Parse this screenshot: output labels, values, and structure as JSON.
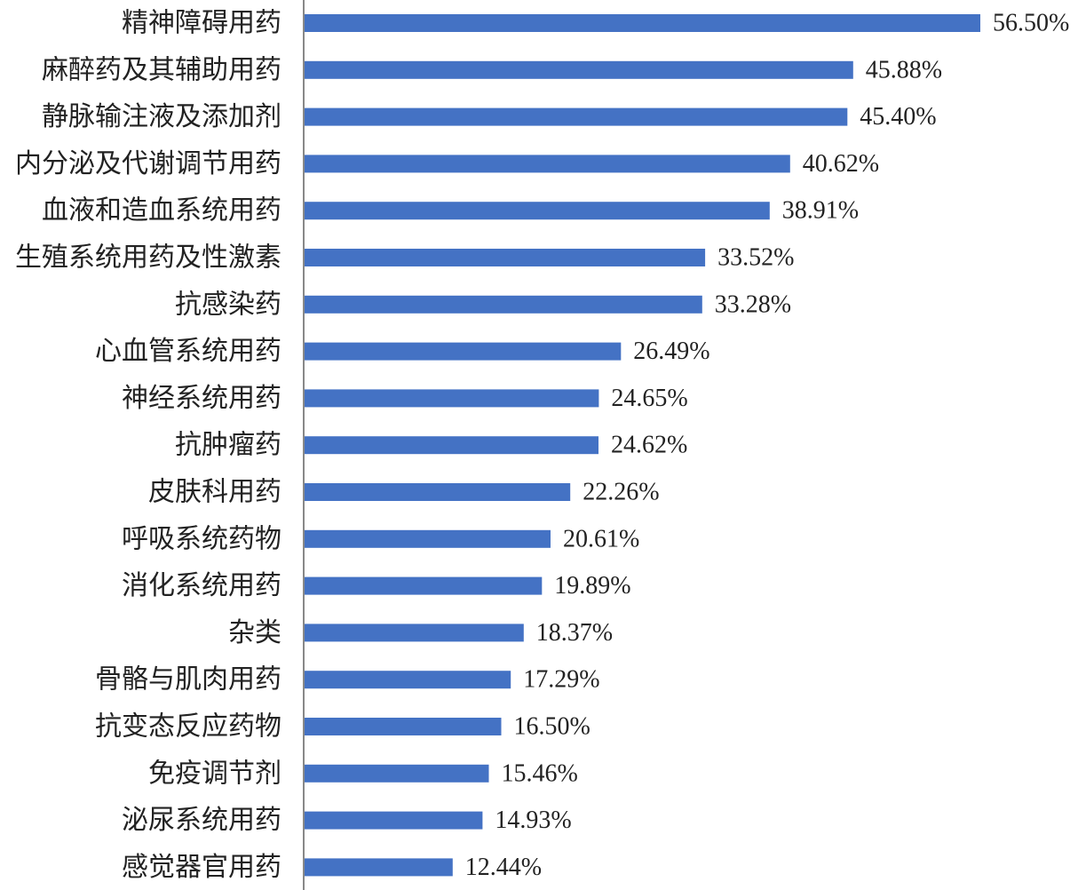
{
  "chart_data": {
    "type": "bar",
    "orientation": "horizontal",
    "title": "",
    "xlabel": "",
    "ylabel": "",
    "xlim": [
      0,
      56.5
    ],
    "grid": false,
    "legend": "none",
    "bar_color": "#4472c4",
    "axis_color": "#888888",
    "categories": [
      "精神障碍用药",
      "麻醉药及其辅助用药",
      "静脉输注液及添加剂",
      "内分泌及代谢调节用药",
      "血液和造血系统用药",
      "生殖系统用药及性激素",
      "抗感染药",
      "心血管系统用药",
      "神经系统用药",
      "抗肿瘤药",
      "皮肤科用药",
      "呼吸系统药物",
      "消化系统用药",
      "杂类",
      "骨骼与肌肉用药",
      "抗变态反应药物",
      "免疫调节剂",
      "泌尿系统用药",
      "感觉器官用药"
    ],
    "values": [
      56.5,
      45.88,
      45.4,
      40.62,
      38.91,
      33.52,
      33.28,
      26.49,
      24.65,
      24.62,
      22.26,
      20.61,
      19.89,
      18.37,
      17.29,
      16.5,
      15.46,
      14.93,
      12.44
    ],
    "value_labels": [
      "56.50%",
      "45.88%",
      "45.40%",
      "40.62%",
      "38.91%",
      "33.52%",
      "33.28%",
      "26.49%",
      "24.65%",
      "24.62%",
      "22.26%",
      "20.61%",
      "19.89%",
      "18.37%",
      "17.29%",
      "16.50%",
      "15.46%",
      "14.93%",
      "12.44%"
    ]
  }
}
